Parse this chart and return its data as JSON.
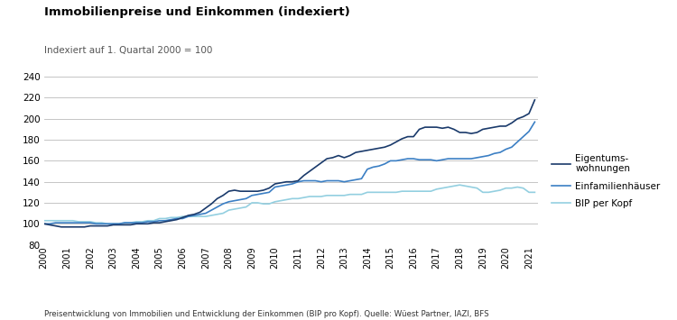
{
  "title": "Immobilienpreise und Einkommen (indexiert)",
  "subtitle": "Indexiert auf 1. Quartal 2000 = 100",
  "footnote": "Preisentwicklung von Immobilien und Entwicklung der Einkommen (BIP pro Kopf). Quelle: Wüest Partner, IAZI, BFS",
  "color_eigentum": "#1a3a6b",
  "color_einfamilien": "#3b7fc4",
  "color_bip": "#93cfe0",
  "ylim": [
    80,
    240
  ],
  "yticks": [
    80,
    100,
    120,
    140,
    160,
    180,
    200,
    220,
    240
  ],
  "legend_labels": [
    "Eigentums-\nwohnungen",
    "Einfamilienhäuser",
    "BIP per Kopf"
  ],
  "background_color": "#ffffff",
  "grid_color": "#bbbbbb",
  "eigentum_x": [
    2000.0,
    2000.25,
    2000.5,
    2000.75,
    2001.0,
    2001.25,
    2001.5,
    2001.75,
    2002.0,
    2002.25,
    2002.5,
    2002.75,
    2003.0,
    2003.25,
    2003.5,
    2003.75,
    2004.0,
    2004.25,
    2004.5,
    2004.75,
    2005.0,
    2005.25,
    2005.5,
    2005.75,
    2006.0,
    2006.25,
    2006.5,
    2006.75,
    2007.0,
    2007.25,
    2007.5,
    2007.75,
    2008.0,
    2008.25,
    2008.5,
    2008.75,
    2009.0,
    2009.25,
    2009.5,
    2009.75,
    2010.0,
    2010.25,
    2010.5,
    2010.75,
    2011.0,
    2011.25,
    2011.5,
    2011.75,
    2012.0,
    2012.25,
    2012.5,
    2012.75,
    2013.0,
    2013.25,
    2013.5,
    2013.75,
    2014.0,
    2014.25,
    2014.5,
    2014.75,
    2015.0,
    2015.25,
    2015.5,
    2015.75,
    2016.0,
    2016.25,
    2016.5,
    2016.75,
    2017.0,
    2017.25,
    2017.5,
    2017.75,
    2018.0,
    2018.25,
    2018.5,
    2018.75,
    2019.0,
    2019.25,
    2019.5,
    2019.75,
    2020.0,
    2020.25,
    2020.5,
    2020.75,
    2021.0,
    2021.25
  ],
  "eigentum_y": [
    100,
    99,
    98,
    97,
    97,
    97,
    97,
    97,
    98,
    98,
    98,
    98,
    99,
    99,
    99,
    99,
    100,
    100,
    100,
    101,
    101,
    102,
    103,
    104,
    106,
    108,
    109,
    111,
    115,
    119,
    124,
    127,
    131,
    132,
    131,
    131,
    131,
    131,
    132,
    134,
    138,
    139,
    140,
    140,
    141,
    146,
    150,
    154,
    158,
    162,
    163,
    165,
    163,
    165,
    168,
    169,
    170,
    171,
    172,
    173,
    175,
    178,
    181,
    183,
    183,
    190,
    192,
    192,
    192,
    191,
    192,
    190,
    187,
    187,
    186,
    187,
    190,
    191,
    192,
    193,
    193,
    196,
    200,
    202,
    205,
    218
  ],
  "einfamilien_x": [
    2000.0,
    2000.25,
    2000.5,
    2000.75,
    2001.0,
    2001.25,
    2001.5,
    2001.75,
    2002.0,
    2002.25,
    2002.5,
    2002.75,
    2003.0,
    2003.25,
    2003.5,
    2003.75,
    2004.0,
    2004.25,
    2004.5,
    2004.75,
    2005.0,
    2005.25,
    2005.5,
    2005.75,
    2006.0,
    2006.25,
    2006.5,
    2006.75,
    2007.0,
    2007.25,
    2007.5,
    2007.75,
    2008.0,
    2008.25,
    2008.5,
    2008.75,
    2009.0,
    2009.25,
    2009.5,
    2009.75,
    2010.0,
    2010.25,
    2010.5,
    2010.75,
    2011.0,
    2011.25,
    2011.5,
    2011.75,
    2012.0,
    2012.25,
    2012.5,
    2012.75,
    2013.0,
    2013.25,
    2013.5,
    2013.75,
    2014.0,
    2014.25,
    2014.5,
    2014.75,
    2015.0,
    2015.25,
    2015.5,
    2015.75,
    2016.0,
    2016.25,
    2016.5,
    2016.75,
    2017.0,
    2017.25,
    2017.5,
    2017.75,
    2018.0,
    2018.25,
    2018.5,
    2018.75,
    2019.0,
    2019.25,
    2019.5,
    2019.75,
    2020.0,
    2020.25,
    2020.5,
    2020.75,
    2021.0,
    2021.25
  ],
  "einfamilien_y": [
    100,
    100,
    101,
    101,
    101,
    101,
    101,
    101,
    101,
    100,
    100,
    100,
    100,
    100,
    101,
    101,
    101,
    101,
    102,
    102,
    103,
    103,
    104,
    105,
    105,
    107,
    108,
    109,
    110,
    113,
    116,
    119,
    121,
    122,
    123,
    124,
    127,
    128,
    129,
    130,
    135,
    136,
    137,
    138,
    140,
    141,
    141,
    141,
    140,
    141,
    141,
    141,
    140,
    141,
    142,
    143,
    152,
    154,
    155,
    157,
    160,
    160,
    161,
    162,
    162,
    161,
    161,
    161,
    160,
    161,
    162,
    162,
    162,
    162,
    162,
    163,
    164,
    165,
    167,
    168,
    171,
    173,
    178,
    183,
    188,
    197
  ],
  "bip_x": [
    2000.0,
    2000.25,
    2000.5,
    2000.75,
    2001.0,
    2001.25,
    2001.5,
    2001.75,
    2002.0,
    2002.25,
    2002.5,
    2002.75,
    2003.0,
    2003.25,
    2003.5,
    2003.75,
    2004.0,
    2004.25,
    2004.5,
    2004.75,
    2005.0,
    2005.25,
    2005.5,
    2005.75,
    2006.0,
    2006.25,
    2006.5,
    2006.75,
    2007.0,
    2007.25,
    2007.5,
    2007.75,
    2008.0,
    2008.25,
    2008.5,
    2008.75,
    2009.0,
    2009.25,
    2009.5,
    2009.75,
    2010.0,
    2010.25,
    2010.5,
    2010.75,
    2011.0,
    2011.25,
    2011.5,
    2011.75,
    2012.0,
    2012.25,
    2012.5,
    2012.75,
    2013.0,
    2013.25,
    2013.5,
    2013.75,
    2014.0,
    2014.25,
    2014.5,
    2014.75,
    2015.0,
    2015.25,
    2015.5,
    2015.75,
    2016.0,
    2016.25,
    2016.5,
    2016.75,
    2017.0,
    2017.25,
    2017.5,
    2017.75,
    2018.0,
    2018.25,
    2018.5,
    2018.75,
    2019.0,
    2019.25,
    2019.5,
    2019.75,
    2020.0,
    2020.25,
    2020.5,
    2020.75,
    2021.0,
    2021.25
  ],
  "bip_y": [
    103,
    103,
    103,
    103,
    103,
    103,
    102,
    102,
    102,
    101,
    101,
    100,
    100,
    100,
    101,
    101,
    102,
    102,
    103,
    103,
    105,
    105,
    106,
    106,
    107,
    107,
    107,
    107,
    107,
    108,
    109,
    110,
    113,
    114,
    115,
    116,
    120,
    120,
    119,
    119,
    121,
    122,
    123,
    124,
    124,
    125,
    126,
    126,
    126,
    127,
    127,
    127,
    127,
    128,
    128,
    128,
    130,
    130,
    130,
    130,
    130,
    130,
    131,
    131,
    131,
    131,
    131,
    131,
    133,
    134,
    135,
    136,
    137,
    136,
    135,
    134,
    130,
    130,
    131,
    132,
    134,
    134,
    135,
    134,
    130,
    130
  ]
}
